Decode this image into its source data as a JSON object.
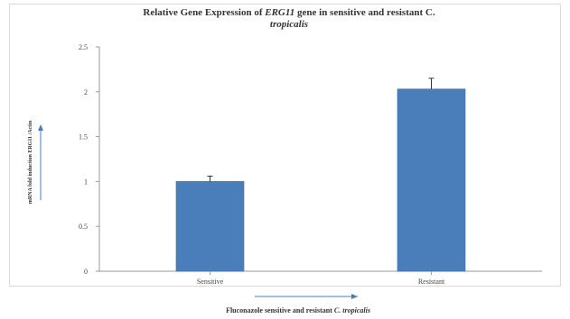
{
  "chart_data": {
    "type": "bar",
    "title": {
      "prefix": "Relative Gene Expression of ",
      "gene": "ERG11",
      "middle": " gene in sensitive and resistant ",
      "genus": "C.",
      "species": "tropicalis"
    },
    "ylabel": "mRNA fold induction ERG11 /Actin",
    "xlabel": {
      "prefix": "Fluconazole sensitive and resistant ",
      "species": "C. tropicalis"
    },
    "categories": [
      "Sensitive",
      "Resistant"
    ],
    "values": [
      1.0,
      2.03
    ],
    "errors": [
      0.06,
      0.12
    ],
    "ylim": [
      0,
      2.5
    ],
    "yticks": [
      "0",
      "0.5",
      "1",
      "1.5",
      "2",
      "2.5"
    ],
    "grid": false,
    "legend": "none",
    "bar_color": "#4a7ebb",
    "arrow_color": "#4a7ebb"
  }
}
